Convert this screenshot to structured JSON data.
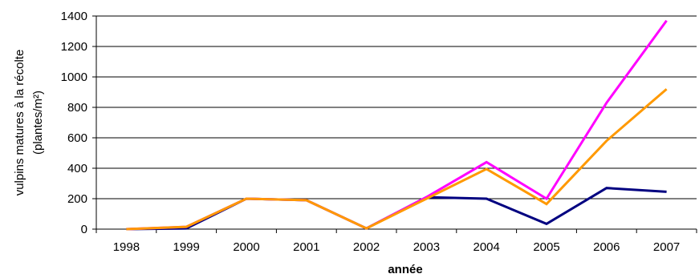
{
  "chart_data": {
    "type": "line",
    "x": [
      "1998",
      "1999",
      "2000",
      "2001",
      "2002",
      "2003",
      "2004",
      "2005",
      "2006",
      "2007"
    ],
    "series": [
      {
        "color": "#000080",
        "values": [
          0,
          5,
          200,
          190,
          5,
          210,
          200,
          35,
          270,
          245
        ]
      },
      {
        "color": "#ff00ff",
        "values": [
          0,
          15,
          200,
          190,
          5,
          210,
          440,
          200,
          830,
          1370
        ]
      },
      {
        "color": "#ff9900",
        "values": [
          0,
          15,
          200,
          190,
          5,
          200,
          395,
          165,
          580,
          920
        ]
      }
    ],
    "xlabel": "année",
    "ylabel": [
      "vulpins matures à la récolte",
      "(plantes/m²)"
    ],
    "ylim": [
      0,
      1400
    ],
    "yticks": [
      0,
      200,
      400,
      600,
      800,
      1000,
      1200,
      1400
    ],
    "grid": "horizontal"
  }
}
